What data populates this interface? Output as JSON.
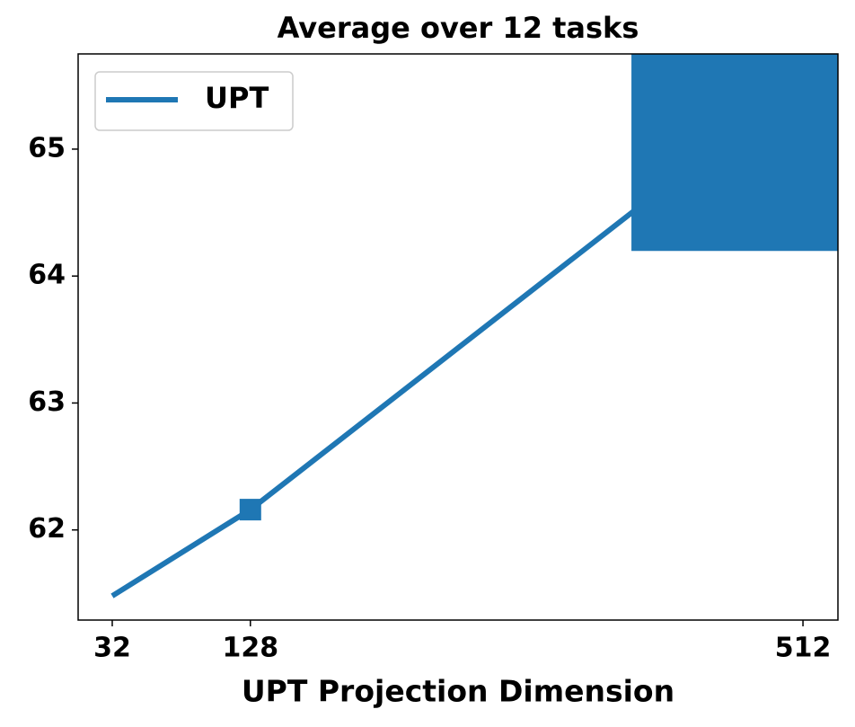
{
  "chart_data": {
    "type": "line",
    "title": "Average over 12 tasks",
    "x_label": "UPT Projection Dimension",
    "x": [
      32,
      128,
      512
    ],
    "series": [
      {
        "name": "UPT",
        "color": "#1f77b4",
        "values": [
          61.48,
          62.16,
          65.55
        ],
        "marker": "square",
        "marker_sizes": [
          0,
          24,
          382
        ]
      }
    ],
    "xlim": [
      8.3,
      536.3
    ],
    "xticks": [
      32,
      128,
      512
    ],
    "ylim": [
      61.29,
      65.75
    ],
    "yticks": [
      62,
      63,
      64,
      65
    ],
    "grid": false,
    "legend": "upper left"
  }
}
